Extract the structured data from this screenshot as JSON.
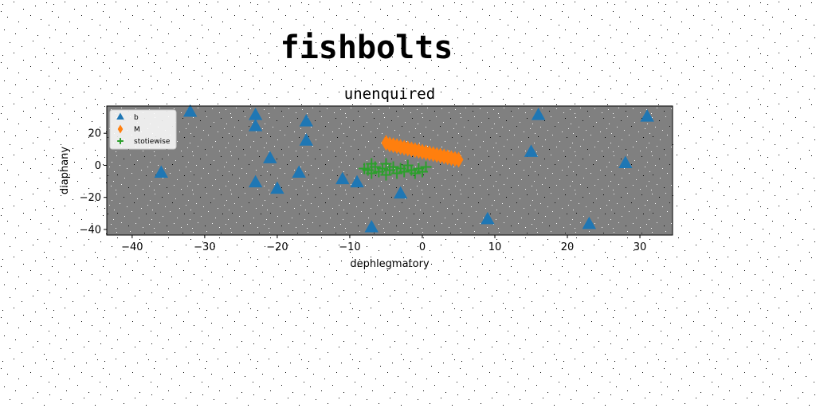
{
  "chart_data": {
    "type": "scatter",
    "suptitle": "fishbolts",
    "title": "unenquired",
    "xlabel": "dephlegmatory",
    "ylabel": "diaphany",
    "xlim": [
      -43.5,
      34.5
    ],
    "ylim": [
      -43.5,
      37
    ],
    "xticks": [
      -40,
      -30,
      -20,
      -10,
      0,
      10,
      20,
      30
    ],
    "yticks": [
      -40,
      -20,
      0,
      20
    ],
    "grid": false,
    "legend_position": "upper-left",
    "plot_background": "#808080",
    "series": [
      {
        "name": "b",
        "marker": "triangle",
        "color": "#1f77b4",
        "points": [
          [
            -36,
            -5
          ],
          [
            -32,
            33
          ],
          [
            -23,
            31
          ],
          [
            -23,
            24
          ],
          [
            -23,
            -11
          ],
          [
            -21,
            4
          ],
          [
            -20,
            -15
          ],
          [
            -17,
            -5
          ],
          [
            -16,
            27
          ],
          [
            -16,
            15
          ],
          [
            -11,
            -9
          ],
          [
            -9,
            -11
          ],
          [
            -7,
            -39
          ],
          [
            -3,
            -18
          ],
          [
            9,
            -34
          ],
          [
            15,
            8
          ],
          [
            16,
            31
          ],
          [
            23,
            -37
          ],
          [
            28,
            1
          ],
          [
            31,
            30
          ]
        ]
      },
      {
        "name": "M",
        "marker": "thin_diamond",
        "color": "#ff7f0e",
        "points": [
          [
            -5,
            14
          ],
          [
            -4.5,
            13
          ],
          [
            -4,
            12.5
          ],
          [
            -3.5,
            12
          ],
          [
            -3,
            11.5
          ],
          [
            -2.5,
            11
          ],
          [
            -2,
            10.5
          ],
          [
            -1.5,
            10
          ],
          [
            -1,
            9.5
          ],
          [
            -0.5,
            9
          ],
          [
            0,
            8.5
          ],
          [
            0.5,
            8
          ],
          [
            1,
            7.5
          ],
          [
            1.5,
            7
          ],
          [
            2,
            6.5
          ],
          [
            2.5,
            6
          ],
          [
            3,
            5.5
          ],
          [
            3.5,
            5
          ],
          [
            4,
            4.5
          ],
          [
            4.5,
            4
          ],
          [
            5,
            3.5
          ]
        ]
      },
      {
        "name": "stotiewise",
        "marker": "plus",
        "color": "#2ca02c",
        "points": [
          [
            -8,
            -2
          ],
          [
            -7.5,
            -3
          ],
          [
            -7,
            -5
          ],
          [
            -6.5,
            -1
          ],
          [
            -6,
            -4
          ],
          [
            -5.5,
            -2
          ],
          [
            -5,
            -6
          ],
          [
            -4.5,
            -3
          ],
          [
            -4,
            -1
          ],
          [
            -3.5,
            -5
          ],
          [
            -3,
            -2
          ],
          [
            -2.5,
            -4
          ],
          [
            -2,
            0
          ],
          [
            -1.5,
            -3
          ],
          [
            -1,
            -5
          ],
          [
            -0.5,
            -2
          ],
          [
            0,
            -4
          ],
          [
            0.5,
            -1
          ],
          [
            -7,
            1
          ],
          [
            -5,
            1
          ]
        ]
      }
    ]
  }
}
